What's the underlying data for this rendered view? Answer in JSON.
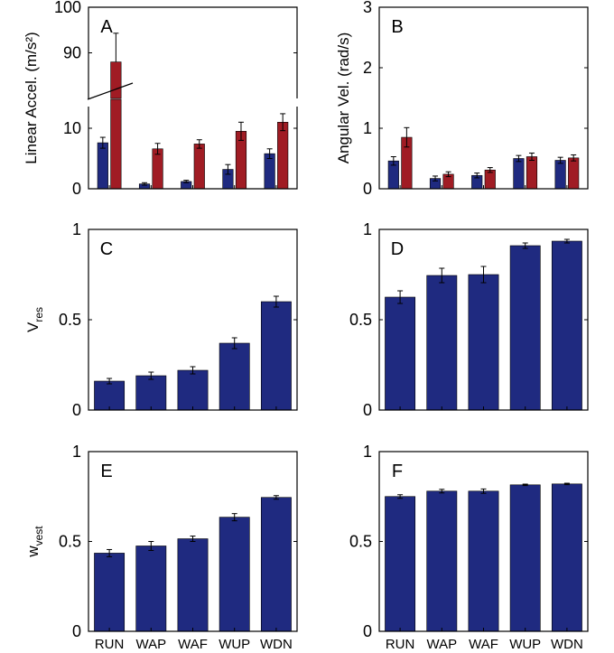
{
  "colors": {
    "blue": "#1F2A80",
    "red": "#A01C24",
    "axis": "#000000",
    "errorbar": "#000000"
  },
  "chart_data": [
    {
      "id": "A",
      "type": "bar",
      "panel_letter": "A",
      "ylabel": "Linear Accel. (m/s²)",
      "categories": [
        "RUN",
        "WAP",
        "WAF",
        "WUP",
        "WDN"
      ],
      "show_category_labels": false,
      "axis_break": true,
      "yticks": [
        0,
        10,
        90,
        100
      ],
      "ylim": [
        0,
        100
      ],
      "series": [
        {
          "name": "blue",
          "color": "#1F2A80",
          "values": [
            7.6,
            0.8,
            1.2,
            3.2,
            5.8
          ],
          "errors": [
            0.9,
            0.2,
            0.2,
            0.8,
            0.8
          ]
        },
        {
          "name": "red",
          "color": "#A01C24",
          "values": [
            88,
            6.6,
            7.4,
            9.5,
            11
          ],
          "errors": [
            6.3,
            0.9,
            0.7,
            1.5,
            1.4
          ]
        }
      ]
    },
    {
      "id": "B",
      "type": "bar",
      "panel_letter": "B",
      "ylabel": "Angular Vel. (rad/s)",
      "categories": [
        "RUN",
        "WAP",
        "WAF",
        "WUP",
        "WDN"
      ],
      "show_category_labels": false,
      "yticks": [
        0,
        1,
        2,
        3
      ],
      "ylim": [
        0,
        3
      ],
      "series": [
        {
          "name": "blue",
          "color": "#1F2A80",
          "values": [
            0.46,
            0.17,
            0.22,
            0.5,
            0.47
          ],
          "errors": [
            0.07,
            0.04,
            0.04,
            0.05,
            0.05
          ]
        },
        {
          "name": "red",
          "color": "#A01C24",
          "values": [
            0.85,
            0.24,
            0.31,
            0.53,
            0.51
          ],
          "errors": [
            0.16,
            0.04,
            0.04,
            0.06,
            0.05
          ]
        }
      ]
    },
    {
      "id": "C",
      "type": "bar",
      "panel_letter": "C",
      "ylabel_main": "V",
      "ylabel_sub": "res",
      "categories": [
        "RUN",
        "WAP",
        "WAF",
        "WUP",
        "WDN"
      ],
      "show_category_labels": false,
      "yticks": [
        0,
        0.5,
        1
      ],
      "ylim": [
        0,
        1
      ],
      "series": [
        {
          "name": "blue",
          "color": "#1F2A80",
          "values": [
            0.16,
            0.19,
            0.22,
            0.37,
            0.6
          ],
          "errors": [
            0.015,
            0.02,
            0.02,
            0.03,
            0.03
          ]
        }
      ]
    },
    {
      "id": "D",
      "type": "bar",
      "panel_letter": "D",
      "categories": [
        "RUN",
        "WAP",
        "WAF",
        "WUP",
        "WDN"
      ],
      "show_category_labels": false,
      "yticks": [
        0,
        0.5,
        1
      ],
      "ylim": [
        0,
        1
      ],
      "series": [
        {
          "name": "blue",
          "color": "#1F2A80",
          "values": [
            0.625,
            0.745,
            0.75,
            0.91,
            0.935
          ],
          "errors": [
            0.035,
            0.04,
            0.045,
            0.015,
            0.01
          ]
        }
      ]
    },
    {
      "id": "E",
      "type": "bar",
      "panel_letter": "E",
      "ylabel_main": "w",
      "ylabel_sub": "vest",
      "categories": [
        "RUN",
        "WAP",
        "WAF",
        "WUP",
        "WDN"
      ],
      "show_category_labels": true,
      "yticks": [
        0,
        0.5,
        1
      ],
      "ylim": [
        0,
        1
      ],
      "series": [
        {
          "name": "blue",
          "color": "#1F2A80",
          "values": [
            0.435,
            0.475,
            0.515,
            0.635,
            0.745
          ],
          "errors": [
            0.02,
            0.025,
            0.015,
            0.02,
            0.01
          ]
        }
      ]
    },
    {
      "id": "F",
      "type": "bar",
      "panel_letter": "F",
      "categories": [
        "RUN",
        "WAP",
        "WAF",
        "WUP",
        "WDN"
      ],
      "show_category_labels": true,
      "yticks": [
        0,
        0.5,
        1
      ],
      "ylim": [
        0,
        1
      ],
      "series": [
        {
          "name": "blue",
          "color": "#1F2A80",
          "values": [
            0.75,
            0.78,
            0.78,
            0.815,
            0.82
          ],
          "errors": [
            0.01,
            0.01,
            0.012,
            0.004,
            0.004
          ]
        }
      ]
    }
  ]
}
